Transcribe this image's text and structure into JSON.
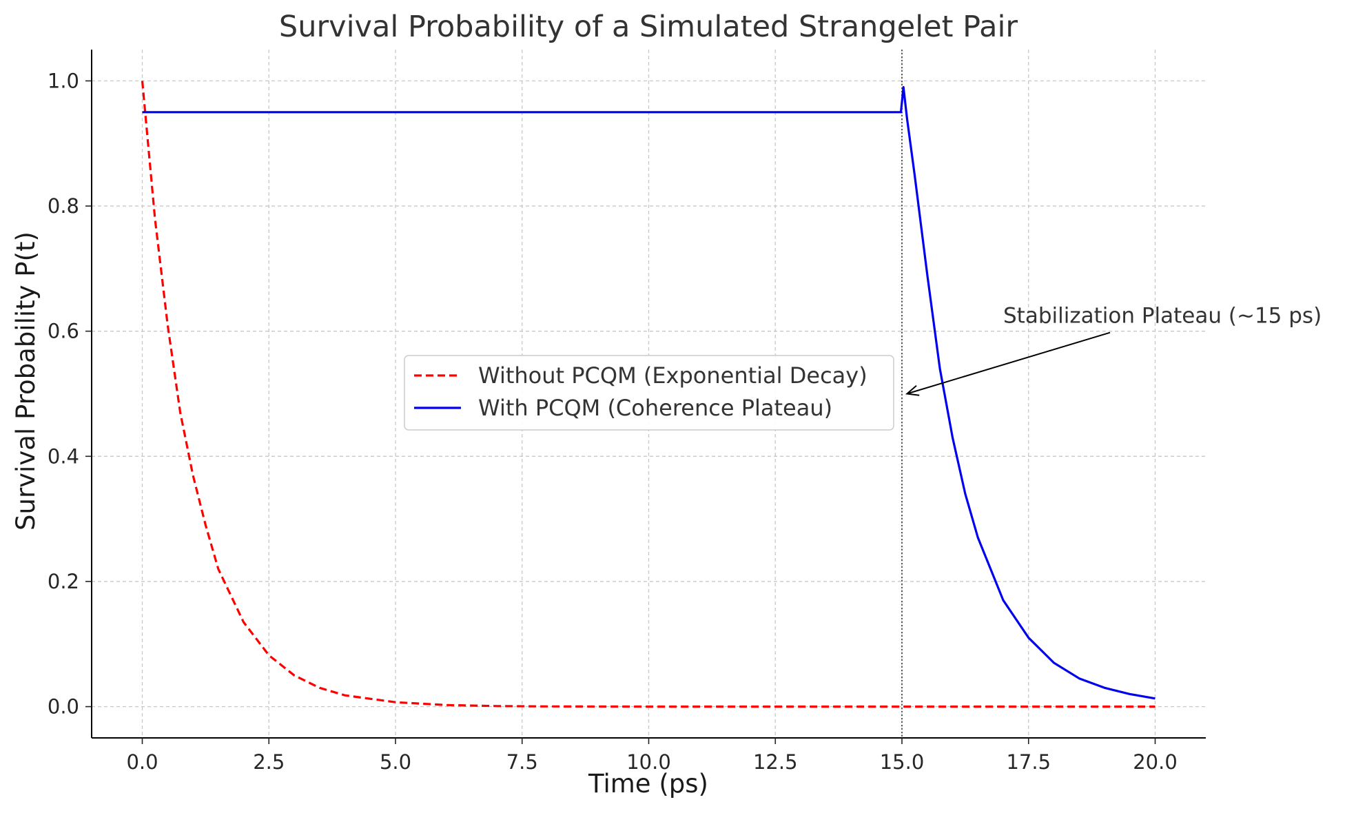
{
  "chart_data": {
    "type": "line",
    "title": "Survival Probability of a Simulated Strangelet Pair",
    "xlabel": "Time (ps)",
    "ylabel": "Survival Probability P(t)",
    "xlim": [
      -1.0,
      21.0
    ],
    "ylim": [
      -0.05,
      1.05
    ],
    "xticks": [
      0.0,
      2.5,
      5.0,
      7.5,
      10.0,
      12.5,
      15.0,
      17.5,
      20.0
    ],
    "xtick_labels": [
      "0.0",
      "2.5",
      "5.0",
      "7.5",
      "10.0",
      "12.5",
      "15.0",
      "17.5",
      "20.0"
    ],
    "yticks": [
      0.0,
      0.2,
      0.4,
      0.6,
      0.8,
      1.0
    ],
    "ytick_labels": [
      "0.0",
      "0.2",
      "0.4",
      "0.6",
      "0.8",
      "1.0"
    ],
    "grid": true,
    "legend_position": "center",
    "series": [
      {
        "name": "Without PCQM (Exponential Decay)",
        "color": "#ff0000",
        "style": "dashed",
        "x": [
          0.0,
          0.25,
          0.5,
          0.75,
          1.0,
          1.25,
          1.5,
          2.0,
          2.5,
          3.0,
          3.5,
          4.0,
          5.0,
          6.0,
          7.0,
          8.0,
          10.0,
          12.0,
          14.0,
          16.0,
          18.0,
          20.0
        ],
        "y": [
          1.0,
          0.78,
          0.61,
          0.47,
          0.37,
          0.29,
          0.22,
          0.135,
          0.082,
          0.05,
          0.03,
          0.018,
          0.007,
          0.0025,
          0.0009,
          0.0003,
          0.0,
          0.0,
          0.0,
          0.0,
          0.0,
          0.0
        ]
      },
      {
        "name": "With PCQM (Coherence Plateau)",
        "color": "#0000ee",
        "style": "solid",
        "x": [
          0.0,
          2.0,
          4.0,
          6.0,
          8.0,
          10.0,
          12.0,
          14.0,
          14.98,
          15.03,
          15.1,
          15.25,
          15.5,
          15.75,
          16.0,
          16.25,
          16.5,
          17.0,
          17.5,
          18.0,
          18.5,
          19.0,
          19.5,
          20.0
        ],
        "y": [
          0.95,
          0.95,
          0.95,
          0.95,
          0.95,
          0.95,
          0.95,
          0.95,
          0.95,
          0.99,
          0.94,
          0.85,
          0.69,
          0.54,
          0.43,
          0.34,
          0.27,
          0.17,
          0.11,
          0.07,
          0.045,
          0.03,
          0.02,
          0.013
        ]
      }
    ],
    "vline": {
      "x": 15.0,
      "style": "dotted",
      "color": "#555555"
    },
    "annotations": [
      {
        "text": "Stabilization Plateau (~15 ps)",
        "xytext": [
          17.0,
          0.6
        ],
        "xy": [
          15.1,
          0.5
        ]
      }
    ]
  }
}
